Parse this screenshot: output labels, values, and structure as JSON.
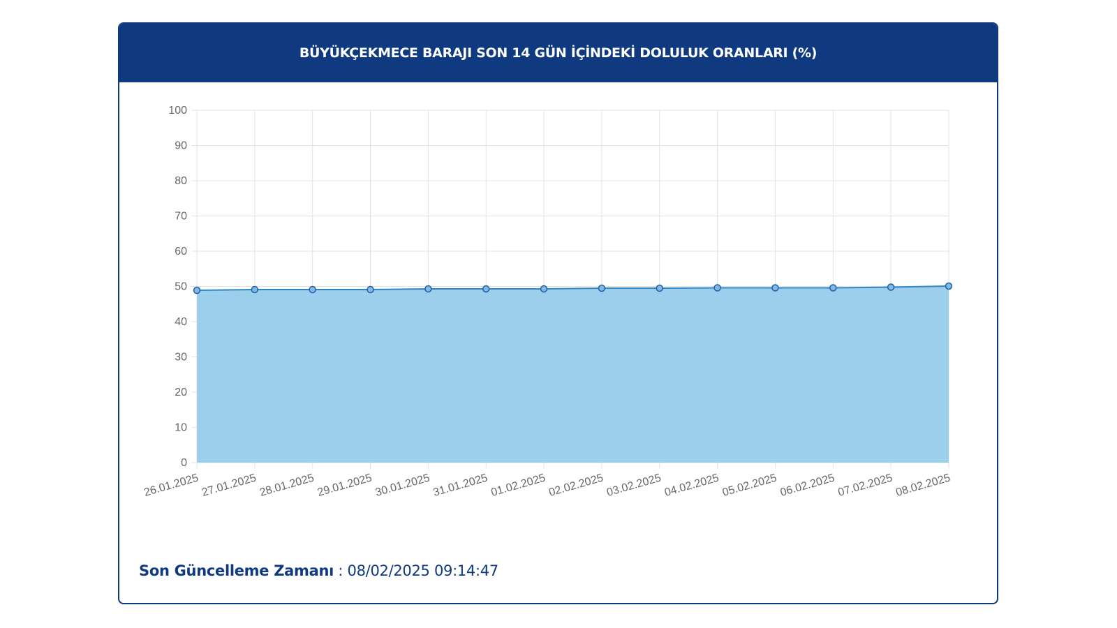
{
  "header": {
    "title": "BÜYÜKÇEKMECE BARAJI SON 14 GÜN İÇİNDEKİ DOLULUK ORANLARI (%)"
  },
  "footer": {
    "label": "Son Güncelleme Zamanı",
    "separator": " : ",
    "value": "08/02/2025 09:14:47"
  },
  "colors": {
    "header_bg": "#0f3a80",
    "area_fill": "#9bcfeb",
    "line": "#2f86c6",
    "grid": "#e3e3e3"
  },
  "chart_data": {
    "type": "area",
    "title": "BÜYÜKÇEKMECE BARAJI SON 14 GÜN İÇİNDEKİ DOLULUK ORANLARI (%)",
    "xlabel": "",
    "ylabel": "",
    "categories": [
      "26.01.2025",
      "27.01.2025",
      "28.01.2025",
      "29.01.2025",
      "30.01.2025",
      "31.01.2025",
      "01.02.2025",
      "02.02.2025",
      "03.02.2025",
      "04.02.2025",
      "05.02.2025",
      "06.02.2025",
      "07.02.2025",
      "08.02.2025"
    ],
    "values": [
      48.9,
      49.1,
      49.1,
      49.1,
      49.3,
      49.3,
      49.3,
      49.5,
      49.5,
      49.6,
      49.6,
      49.6,
      49.8,
      50.1
    ],
    "yticks": [
      0,
      10,
      20,
      30,
      40,
      50,
      60,
      70,
      80,
      90,
      100
    ],
    "ylim": [
      0,
      100
    ],
    "grid": true,
    "legend": "none"
  }
}
